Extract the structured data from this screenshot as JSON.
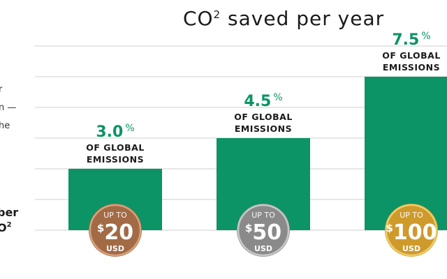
{
  "chart_data": {
    "type": "bar",
    "title": "CO",
    "title_sup": "2",
    "title_rest": " saved per year",
    "categories": [
      "$20 USD",
      "$50 USD",
      "$100 USD"
    ],
    "values": [
      3.0,
      4.5,
      7.5
    ],
    "value_labels": [
      "3.0",
      "4.5",
      "7.5"
    ],
    "value_suffix": "%",
    "bar_label_lines": [
      "OF GLOBAL",
      "EMISSIONS"
    ],
    "ylim": [
      0,
      9
    ],
    "grid": true,
    "bar_color": "#0c9466"
  },
  "coins": [
    {
      "up_to": "UP TO",
      "dollar": "$",
      "amount": "20",
      "unit": "USD",
      "color": "#a26a45",
      "rim": "#d8a27c"
    },
    {
      "up_to": "UP TO",
      "dollar": "$",
      "amount": "50",
      "unit": "USD",
      "color": "#8a8a8a",
      "rim": "#c9c9c9"
    },
    {
      "up_to": "UP TO",
      "dollar": "$",
      "amount": "100",
      "unit": "USD",
      "color": "#cf9a2c",
      "rim": "#f0cc6a"
    }
  ],
  "left_text": {
    "fragment_1": "r",
    "fragment_2": "n —",
    "fragment_3": "he",
    "fragment_4": "ber",
    "fragment_5": "O",
    "fragment_5_sup": "2"
  }
}
